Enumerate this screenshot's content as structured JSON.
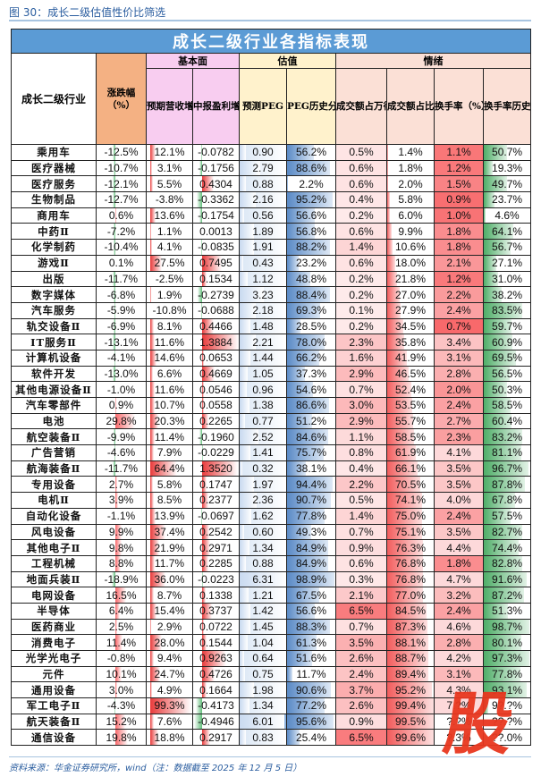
{
  "caption": "图 30：成长二级估值性价比筛选",
  "table_title": "成长二级行业各指标表现",
  "groups": {
    "fundamental": "基本面",
    "valuation": "估值",
    "sentiment": "情绪"
  },
  "headers": {
    "name": "成长二级行业",
    "change": "涨跌幅（%）",
    "rev_growth": "预期营收增速（%）",
    "profit_growth": "中报盈利增速（%）",
    "peg": "预测PEG",
    "peg_pct": "PEG历史分位数（%）",
    "turnover_share": "成交额占万得全A比（%）",
    "turnover_share_pct": "成交额占比历史分位数（%）",
    "turnover_rate": "换手率（%）",
    "turnover_rate_pct": "换手率历史分位数（%）"
  },
  "colors": {
    "title_bg": "#5b9bd5",
    "change_header": "#f4b183",
    "fundamental_header": "#f8cdf0",
    "valuation_header": "#fff2cc",
    "sentiment_header": "#fbe0d6",
    "neg_bar": "#63be7b",
    "pos_bar": "#f8696b",
    "blue_bar": "#5a8ac6",
    "caption": "#2a5d9f",
    "stamp": "#e8371f"
  },
  "rows": [
    {
      "name": "乘用车",
      "change": "-12.5%",
      "rev": "12.1%",
      "profit": "-0.0782",
      "peg": "0.90",
      "peg_pct": "56.2%",
      "ts": "0.5%",
      "ts_pct": "1.4%",
      "tr": "1.1%",
      "tr_pct": "50.7%"
    },
    {
      "name": "医疗器械",
      "change": "-10.7%",
      "rev": "3.1%",
      "profit": "-0.1756",
      "peg": "2.79",
      "peg_pct": "88.6%",
      "ts": "0.6%",
      "ts_pct": "1.8%",
      "tr": "1.2%",
      "tr_pct": "19.3%"
    },
    {
      "name": "医疗服务",
      "change": "-12.1%",
      "rev": "5.5%",
      "profit": "0.4304",
      "peg": "0.88",
      "peg_pct": "2.2%",
      "ts": "0.6%",
      "ts_pct": "2.0%",
      "tr": "1.5%",
      "tr_pct": "49.7%"
    },
    {
      "name": "生物制品",
      "change": "-12.7%",
      "rev": "-3.8%",
      "profit": "-0.3362",
      "peg": "2.16",
      "peg_pct": "95.2%",
      "ts": "0.4%",
      "ts_pct": "5.8%",
      "tr": "0.9%",
      "tr_pct": "23.7%"
    },
    {
      "name": "商用车",
      "change": "0.6%",
      "rev": "13.6%",
      "profit": "-0.1754",
      "peg": "0.56",
      "peg_pct": "56.6%",
      "ts": "0.2%",
      "ts_pct": "6.0%",
      "tr": "1.0%",
      "tr_pct": "4.6%"
    },
    {
      "name": "中药Ⅱ",
      "change": "-7.2%",
      "rev": "1.1%",
      "profit": "0.0013",
      "peg": "1.89",
      "peg_pct": "56.8%",
      "ts": "0.6%",
      "ts_pct": "9.9%",
      "tr": "1.8%",
      "tr_pct": "64.1%"
    },
    {
      "name": "化学制药",
      "change": "-10.4%",
      "rev": "4.1%",
      "profit": "-0.0835",
      "peg": "1.91",
      "peg_pct": "88.2%",
      "ts": "1.4%",
      "ts_pct": "10.6%",
      "tr": "1.8%",
      "tr_pct": "56.7%"
    },
    {
      "name": "游戏Ⅱ",
      "change": "0.1%",
      "rev": "27.5%",
      "profit": "0.7495",
      "peg": "0.43",
      "peg_pct": "23.2%",
      "ts": "0.6%",
      "ts_pct": "18.0%",
      "tr": "2.1%",
      "tr_pct": "27.1%"
    },
    {
      "name": "出版",
      "change": "-11.7%",
      "rev": "-2.5%",
      "profit": "0.1534",
      "peg": "1.12",
      "peg_pct": "48.8%",
      "ts": "0.2%",
      "ts_pct": "21.8%",
      "tr": "1.2%",
      "tr_pct": "31.0%"
    },
    {
      "name": "数字媒体",
      "change": "-6.8%",
      "rev": "1.9%",
      "profit": "-0.2739",
      "peg": "3.23",
      "peg_pct": "88.4%",
      "ts": "0.2%",
      "ts_pct": "27.0%",
      "tr": "2.2%",
      "tr_pct": "38.2%"
    },
    {
      "name": "汽车服务",
      "change": "-5.9%",
      "rev": "-10.8%",
      "profit": "-0.0688",
      "peg": "2.18",
      "peg_pct": "69.3%",
      "ts": "0.1%",
      "ts_pct": "27.9%",
      "tr": "2.4%",
      "tr_pct": "83.5%"
    },
    {
      "name": "轨交设备Ⅱ",
      "change": "-6.9%",
      "rev": "8.1%",
      "profit": "0.4466",
      "peg": "1.48",
      "peg_pct": "28.5%",
      "ts": "0.2%",
      "ts_pct": "34.5%",
      "tr": "0.7%",
      "tr_pct": "59.7%"
    },
    {
      "name": "IT服务Ⅱ",
      "change": "-13.1%",
      "rev": "11.6%",
      "profit": "1.3884",
      "peg": "2.21",
      "peg_pct": "78.0%",
      "ts": "2.3%",
      "ts_pct": "35.8%",
      "tr": "3.4%",
      "tr_pct": "60.9%"
    },
    {
      "name": "计算机设备",
      "change": "-4.1%",
      "rev": "14.6%",
      "profit": "0.0653",
      "peg": "1.44",
      "peg_pct": "66.2%",
      "ts": "1.6%",
      "ts_pct": "41.9%",
      "tr": "3.1%",
      "tr_pct": "69.5%"
    },
    {
      "name": "软件开发",
      "change": "-13.0%",
      "rev": "6.6%",
      "profit": "0.4669",
      "peg": "1.05",
      "peg_pct": "37.3%",
      "ts": "2.9%",
      "ts_pct": "46.5%",
      "tr": "2.8%",
      "tr_pct": "56.5%"
    },
    {
      "name": "其他电源设备Ⅱ",
      "change": "-1.0%",
      "rev": "11.6%",
      "profit": "0.0546",
      "peg": "0.96",
      "peg_pct": "54.6%",
      "ts": "0.7%",
      "ts_pct": "52.4%",
      "tr": "2.0%",
      "tr_pct": "50.3%"
    },
    {
      "name": "汽车零部件",
      "change": "0.9%",
      "rev": "10.7%",
      "profit": "0.0558",
      "peg": "1.38",
      "peg_pct": "86.6%",
      "ts": "3.0%",
      "ts_pct": "53.5%",
      "tr": "2.4%",
      "tr_pct": "58.5%"
    },
    {
      "name": "电池",
      "change": "29.8%",
      "rev": "20.3%",
      "profit": "0.2265",
      "peg": "0.77",
      "peg_pct": "51.2%",
      "ts": "2.9%",
      "ts_pct": "55.7%",
      "tr": "2.7%",
      "tr_pct": "60.4%"
    },
    {
      "name": "航空装备Ⅱ",
      "change": "-9.9%",
      "rev": "11.4%",
      "profit": "-0.1960",
      "peg": "2.52",
      "peg_pct": "84.6%",
      "ts": "1.1%",
      "ts_pct": "58.5%",
      "tr": "2.3%",
      "tr_pct": "83.2%"
    },
    {
      "name": "广告营销",
      "change": "-4.6%",
      "rev": "7.9%",
      "profit": "-0.0229",
      "peg": "1.41",
      "peg_pct": "75.7%",
      "ts": "0.8%",
      "ts_pct": "61.9%",
      "tr": "4.1%",
      "tr_pct": "81.1%"
    },
    {
      "name": "航海装备Ⅱ",
      "change": "-11.7%",
      "rev": "64.4%",
      "profit": "1.3520",
      "peg": "0.32",
      "peg_pct": "38.1%",
      "ts": "0.4%",
      "ts_pct": "66.1%",
      "tr": "3.5%",
      "tr_pct": "96.7%"
    },
    {
      "name": "专用设备",
      "change": "2.7%",
      "rev": "5.8%",
      "profit": "0.1747",
      "peg": "1.97",
      "peg_pct": "94.4%",
      "ts": "2.2%",
      "ts_pct": "70.5%",
      "tr": "3.5%",
      "tr_pct": "87.8%"
    },
    {
      "name": "电机Ⅱ",
      "change": "3.9%",
      "rev": "8.5%",
      "profit": "0.2377",
      "peg": "2.36",
      "peg_pct": "90.7%",
      "ts": "0.5%",
      "ts_pct": "74.1%",
      "tr": "4.0%",
      "tr_pct": "67.8%"
    },
    {
      "name": "自动化设备",
      "change": "-1.1%",
      "rev": "13.9%",
      "profit": "-0.0697",
      "peg": "1.62",
      "peg_pct": "77.8%",
      "ts": "1.4%",
      "ts_pct": "75.0%",
      "tr": "2.4%",
      "tr_pct": "57.5%"
    },
    {
      "name": "风电设备",
      "change": "9.9%",
      "rev": "37.4%",
      "profit": "0.2542",
      "peg": "0.60",
      "peg_pct": "49.3%",
      "ts": "0.7%",
      "ts_pct": "75.1%",
      "tr": "3.5%",
      "tr_pct": "82.7%"
    },
    {
      "name": "其他电子Ⅱ",
      "change": "9.8%",
      "rev": "21.9%",
      "profit": "0.2971",
      "peg": "1.34",
      "peg_pct": "84.9%",
      "ts": "0.9%",
      "ts_pct": "76.3%",
      "tr": "4.4%",
      "tr_pct": "74.4%"
    },
    {
      "name": "工程机械",
      "change": "8.8%",
      "rev": "11.7%",
      "profit": "0.2285",
      "peg": "0.88",
      "peg_pct": "84.9%",
      "ts": "0.6%",
      "ts_pct": "76.8%",
      "tr": "1.8%",
      "tr_pct": "82.8%"
    },
    {
      "name": "地面兵装Ⅱ",
      "change": "-18.9%",
      "rev": "36.0%",
      "profit": "-0.0223",
      "peg": "6.31",
      "peg_pct": "98.9%",
      "ts": "0.3%",
      "ts_pct": "76.8%",
      "tr": "4.7%",
      "tr_pct": "91.6%"
    },
    {
      "name": "电网设备",
      "change": "16.5%",
      "rev": "8.7%",
      "profit": "0.1338",
      "peg": "1.21",
      "peg_pct": "67.5%",
      "ts": "2.1%",
      "ts_pct": "77.0%",
      "tr": "3.2%",
      "tr_pct": "87.2%"
    },
    {
      "name": "半导体",
      "change": "6.4%",
      "rev": "15.4%",
      "profit": "0.3737",
      "peg": "1.42",
      "peg_pct": "56.6%",
      "ts": "6.5%",
      "ts_pct": "84.5%",
      "tr": "2.4%",
      "tr_pct": "51.3%"
    },
    {
      "name": "医药商业",
      "change": "2.5%",
      "rev": "2.9%",
      "profit": "0.0722",
      "peg": "1.45",
      "peg_pct": "88.3%",
      "ts": "0.7%",
      "ts_pct": "87.3%",
      "tr": "4.6%",
      "tr_pct": "98.7%"
    },
    {
      "name": "消费电子",
      "change": "11.4%",
      "rev": "28.0%",
      "profit": "0.1544",
      "peg": "1.04",
      "peg_pct": "61.3%",
      "ts": "3.5%",
      "ts_pct": "88.1%",
      "tr": "2.8%",
      "tr_pct": "80.1%"
    },
    {
      "name": "光学光电子",
      "change": "-0.8%",
      "rev": "9.4%",
      "profit": "0.9263",
      "peg": "0.64",
      "peg_pct": "51.6%",
      "ts": "2.6%",
      "ts_pct": "88.7%",
      "tr": "4.2%",
      "tr_pct": "97.3%"
    },
    {
      "name": "元件",
      "change": "10.1%",
      "rev": "24.7%",
      "profit": "0.4726",
      "peg": "0.75",
      "peg_pct": "11.7%",
      "ts": "2.4%",
      "ts_pct": "89.4%",
      "tr": "3.1%",
      "tr_pct": "77.8%"
    },
    {
      "name": "通用设备",
      "change": "3.0%",
      "rev": "4.9%",
      "profit": "0.1664",
      "peg": "1.98",
      "peg_pct": "90.6%",
      "ts": "3.7%",
      "ts_pct": "95.2%",
      "tr": "4.3%",
      "tr_pct": "93.1%"
    },
    {
      "name": "军工电子Ⅱ",
      "change": "-4.3%",
      "rev": "99.3%",
      "profit": "-0.4173",
      "peg": "1.34",
      "peg_pct": "77.2%",
      "ts": "2.6%",
      "ts_pct": "99.4%",
      "tr": "7.?%",
      "tr_pct": "9?.?%"
    },
    {
      "name": "航天装备Ⅱ",
      "change": "15.2%",
      "rev": "7.6%",
      "profit": "-0.4946",
      "peg": "6.01",
      "peg_pct": "95.6%",
      "ts": "0.9%",
      "ts_pct": "99.5%",
      "tr": "?.?%",
      "tr_pct": "??.?%"
    },
    {
      "name": "通信设备",
      "change": "19.8%",
      "rev": "18.8%",
      "profit": "0.2917",
      "peg": "0.83",
      "peg_pct": "25.4%",
      "ts": "6.5%",
      "ts_pct": "99.6%",
      "tr": "?.3%",
      "tr_pct": "??.0%"
    }
  ],
  "footer": "资料来源：华金证券研究所，wind（注：数据截至 2025 年 12 月 5 日）",
  "watermark": "股"
}
